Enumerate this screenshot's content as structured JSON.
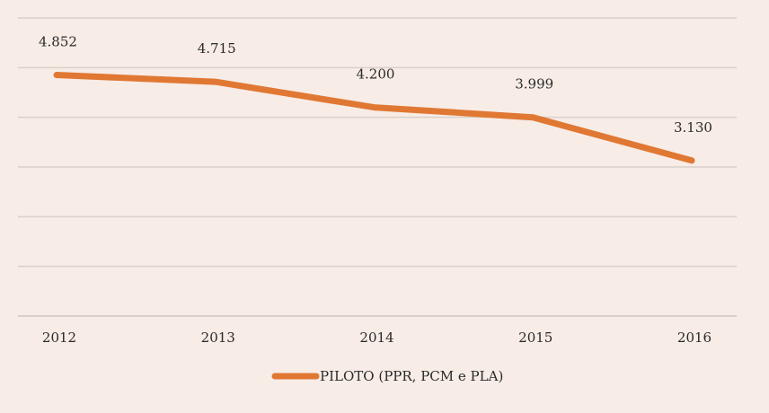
{
  "chart_data": {
    "type": "line",
    "categories": [
      "2012",
      "2013",
      "2014",
      "2015",
      "2016"
    ],
    "series": [
      {
        "name": "PILOTO (PPR, PCM e PLA)",
        "values": [
          4.852,
          4.715,
          4.2,
          3.999,
          3.13
        ],
        "labels": [
          "4.852",
          "4.715",
          "4.200",
          "3.999",
          "3.130"
        ],
        "color": "#e07833"
      }
    ],
    "ylim": [
      0,
      6
    ],
    "grid": true,
    "legend_position": "bottom"
  }
}
